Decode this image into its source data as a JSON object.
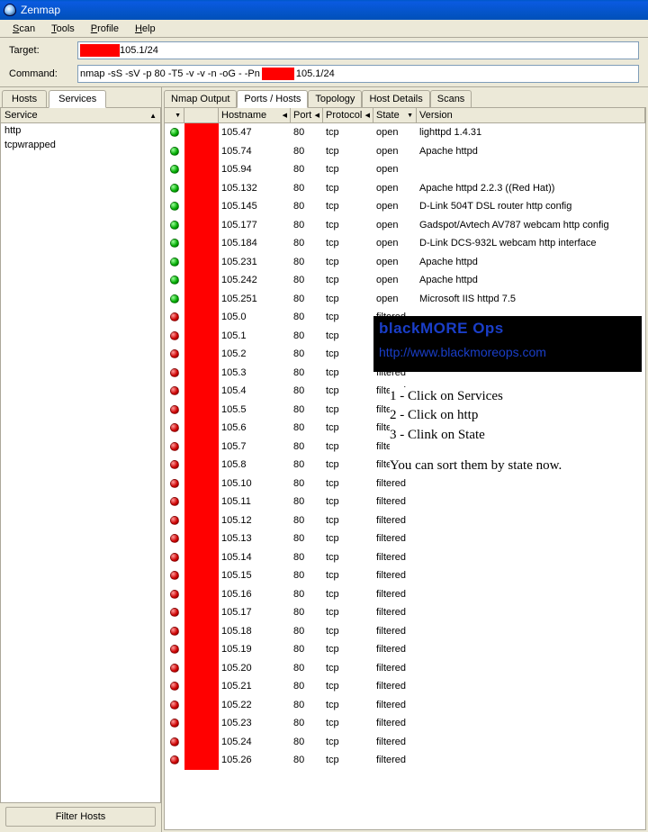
{
  "window": {
    "title": "Zenmap"
  },
  "menu": {
    "scan": "Scan",
    "tools": "Tools",
    "profile": "Profile",
    "help": "Help"
  },
  "fields": {
    "target_label": "Target:",
    "target_value": "105.1/24",
    "target_redact_w": 44,
    "command_label": "Command:",
    "command_prefix": "nmap -sS -sV -p 80 -T5 -v -v -n -oG - -Pn",
    "command_redact_w": 36,
    "command_suffix": "105.1/24"
  },
  "left_tabs": {
    "hosts": "Hosts",
    "services": "Services"
  },
  "service_header": "Service",
  "services": [
    "http",
    "tcpwrapped"
  ],
  "filter_button": "Filter Hosts",
  "right_tabs": {
    "nmap_output": "Nmap Output",
    "ports_hosts": "Ports / Hosts",
    "topology": "Topology",
    "host_details": "Host Details",
    "scans": "Scans"
  },
  "columns": {
    "hostname": "Hostname",
    "port": "Port",
    "protocol": "Protocol",
    "state": "State",
    "version": "Version"
  },
  "rows": [
    {
      "c": "green",
      "h": "105.47",
      "p": "80",
      "pr": "tcp",
      "s": "open",
      "v": "lighttpd 1.4.31"
    },
    {
      "c": "green",
      "h": "105.74",
      "p": "80",
      "pr": "tcp",
      "s": "open",
      "v": "Apache httpd"
    },
    {
      "c": "green",
      "h": "105.94",
      "p": "80",
      "pr": "tcp",
      "s": "open",
      "v": ""
    },
    {
      "c": "green",
      "h": "105.132",
      "p": "80",
      "pr": "tcp",
      "s": "open",
      "v": "Apache httpd 2.2.3 ((Red Hat))"
    },
    {
      "c": "green",
      "h": "105.145",
      "p": "80",
      "pr": "tcp",
      "s": "open",
      "v": "D-Link 504T DSL router http config"
    },
    {
      "c": "green",
      "h": "105.177",
      "p": "80",
      "pr": "tcp",
      "s": "open",
      "v": "Gadspot/Avtech AV787 webcam http config"
    },
    {
      "c": "green",
      "h": "105.184",
      "p": "80",
      "pr": "tcp",
      "s": "open",
      "v": "D-Link DCS-932L webcam http interface"
    },
    {
      "c": "green",
      "h": "105.231",
      "p": "80",
      "pr": "tcp",
      "s": "open",
      "v": "Apache httpd"
    },
    {
      "c": "green",
      "h": "105.242",
      "p": "80",
      "pr": "tcp",
      "s": "open",
      "v": "Apache httpd"
    },
    {
      "c": "green",
      "h": "105.251",
      "p": "80",
      "pr": "tcp",
      "s": "open",
      "v": "Microsoft IIS httpd 7.5"
    },
    {
      "c": "red",
      "h": "105.0",
      "p": "80",
      "pr": "tcp",
      "s": "filtered",
      "v": ""
    },
    {
      "c": "red",
      "h": "105.1",
      "p": "80",
      "pr": "tcp",
      "s": "filtered",
      "v": ""
    },
    {
      "c": "red",
      "h": "105.2",
      "p": "80",
      "pr": "tcp",
      "s": "filtered",
      "v": ""
    },
    {
      "c": "red",
      "h": "105.3",
      "p": "80",
      "pr": "tcp",
      "s": "filtered",
      "v": ""
    },
    {
      "c": "red",
      "h": "105.4",
      "p": "80",
      "pr": "tcp",
      "s": "filtered",
      "v": ""
    },
    {
      "c": "red",
      "h": "105.5",
      "p": "80",
      "pr": "tcp",
      "s": "filtered",
      "v": ""
    },
    {
      "c": "red",
      "h": "105.6",
      "p": "80",
      "pr": "tcp",
      "s": "filtered",
      "v": ""
    },
    {
      "c": "red",
      "h": "105.7",
      "p": "80",
      "pr": "tcp",
      "s": "filtered",
      "v": ""
    },
    {
      "c": "red",
      "h": "105.8",
      "p": "80",
      "pr": "tcp",
      "s": "filtered",
      "v": ""
    },
    {
      "c": "red",
      "h": "105.10",
      "p": "80",
      "pr": "tcp",
      "s": "filtered",
      "v": ""
    },
    {
      "c": "red",
      "h": "105.11",
      "p": "80",
      "pr": "tcp",
      "s": "filtered",
      "v": ""
    },
    {
      "c": "red",
      "h": "105.12",
      "p": "80",
      "pr": "tcp",
      "s": "filtered",
      "v": ""
    },
    {
      "c": "red",
      "h": "105.13",
      "p": "80",
      "pr": "tcp",
      "s": "filtered",
      "v": ""
    },
    {
      "c": "red",
      "h": "105.14",
      "p": "80",
      "pr": "tcp",
      "s": "filtered",
      "v": ""
    },
    {
      "c": "red",
      "h": "105.15",
      "p": "80",
      "pr": "tcp",
      "s": "filtered",
      "v": ""
    },
    {
      "c": "red",
      "h": "105.16",
      "p": "80",
      "pr": "tcp",
      "s": "filtered",
      "v": ""
    },
    {
      "c": "red",
      "h": "105.17",
      "p": "80",
      "pr": "tcp",
      "s": "filtered",
      "v": ""
    },
    {
      "c": "red",
      "h": "105.18",
      "p": "80",
      "pr": "tcp",
      "s": "filtered",
      "v": ""
    },
    {
      "c": "red",
      "h": "105.19",
      "p": "80",
      "pr": "tcp",
      "s": "filtered",
      "v": ""
    },
    {
      "c": "red",
      "h": "105.20",
      "p": "80",
      "pr": "tcp",
      "s": "filtered",
      "v": ""
    },
    {
      "c": "red",
      "h": "105.21",
      "p": "80",
      "pr": "tcp",
      "s": "filtered",
      "v": ""
    },
    {
      "c": "red",
      "h": "105.22",
      "p": "80",
      "pr": "tcp",
      "s": "filtered",
      "v": ""
    },
    {
      "c": "red",
      "h": "105.23",
      "p": "80",
      "pr": "tcp",
      "s": "filtered",
      "v": ""
    },
    {
      "c": "red",
      "h": "105.24",
      "p": "80",
      "pr": "tcp",
      "s": "filtered",
      "v": ""
    },
    {
      "c": "red",
      "h": "105.26",
      "p": "80",
      "pr": "tcp",
      "s": "filtered",
      "v": ""
    }
  ],
  "banner": {
    "title": "blackMORE Ops",
    "url": "http://www.blackmoreops.com"
  },
  "note": {
    "l1": "1 - Click on Services",
    "l2": "2 - Click on http",
    "l3": "3 - Clink on State",
    "l4": "You can sort them by state now."
  },
  "colors": {
    "titlebar_start": "#0058c8",
    "titlebar_end": "#0050b8",
    "panel_bg": "#ece9d8",
    "border": "#aca899",
    "redact": "#ff0000",
    "banner_bg": "#000000",
    "banner_fg": "#1a3ec8"
  }
}
